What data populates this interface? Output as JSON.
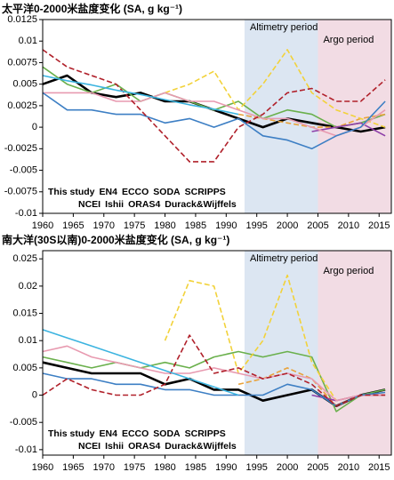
{
  "chart_data": [
    {
      "type": "line",
      "title": "太平洋0-2000米盐度变化 (SA, g kg⁻¹)",
      "x": [
        1960,
        1964,
        1968,
        1972,
        1976,
        1980,
        1984,
        1988,
        1992,
        1996,
        2000,
        2004,
        2008,
        2012,
        2016
      ],
      "xlim": [
        1960,
        2017
      ],
      "xticks": [
        1960,
        1965,
        1970,
        1975,
        1980,
        1985,
        1990,
        1995,
        2000,
        2005,
        2010,
        2015
      ],
      "ylim": [
        -0.01,
        0.0125
      ],
      "yticks": [
        -0.01,
        -0.0075,
        -0.005,
        -0.0025,
        0,
        0.0025,
        0.005,
        0.0075,
        0.01,
        0.0125
      ],
      "periods": [
        {
          "label": "Altimetry period",
          "start": 1993,
          "end": 2017,
          "color": "#dce6f2",
          "label_color": "#3a7cc0"
        },
        {
          "label": "Argo period",
          "start": 2005,
          "end": 2017,
          "color": "#f2dce4",
          "label_color": "#d2485a"
        }
      ],
      "series": [
        {
          "name": "This study",
          "color": "#000000",
          "dash": false,
          "values": [
            0.005,
            0.006,
            0.004,
            0.0035,
            0.004,
            0.003,
            0.003,
            0.002,
            0.001,
            0.0,
            0.001,
            0.0005,
            0.0,
            -0.0005,
            0.0
          ]
        },
        {
          "name": "EN4",
          "color": "#6ab04c",
          "dash": false,
          "values": [
            0.007,
            0.005,
            0.004,
            0.005,
            0.003,
            0.004,
            0.003,
            0.002,
            0.003,
            0.001,
            0.002,
            0.0015,
            0.0,
            0.0005,
            0.0015
          ]
        },
        {
          "name": "ECCO",
          "color": "#e8a33c",
          "dash": true,
          "values": [
            null,
            null,
            null,
            null,
            null,
            null,
            null,
            null,
            0.0015,
            0.001,
            0.0005,
            0.0,
            0.0,
            0.001,
            0.0015
          ]
        },
        {
          "name": "SODA",
          "color": "#f2d23a",
          "dash": true,
          "values": [
            null,
            null,
            null,
            null,
            null,
            0.004,
            0.005,
            0.0065,
            0.002,
            0.005,
            0.009,
            0.004,
            0.002,
            0.001,
            0.0
          ]
        },
        {
          "name": "SCRIPPS",
          "color": "#8e3fa8",
          "dash": false,
          "values": [
            null,
            null,
            null,
            null,
            null,
            null,
            null,
            null,
            null,
            null,
            null,
            -0.0005,
            0.0,
            0.0005,
            -0.001
          ]
        },
        {
          "name": "NCEI",
          "color": "#e89ab0",
          "dash": false,
          "values": [
            0.004,
            0.004,
            0.004,
            0.003,
            0.003,
            0.004,
            0.003,
            0.003,
            0.002,
            0.001,
            0.001,
            0.0,
            -0.001,
            0.0,
            0.002
          ]
        },
        {
          "name": "Ishii",
          "color": "#3d7fc4",
          "dash": false,
          "values": [
            0.004,
            0.002,
            0.002,
            0.0015,
            0.0015,
            0.0005,
            0.001,
            0.0,
            0.001,
            -0.001,
            -0.0015,
            -0.0025,
            -0.001,
            0.0,
            0.003
          ]
        },
        {
          "name": "ORAS4",
          "color": "#b0202a",
          "dash": true,
          "values": [
            0.009,
            0.007,
            0.006,
            0.005,
            0.002,
            -0.001,
            -0.004,
            -0.004,
            0.0,
            0.0015,
            0.004,
            0.0045,
            0.003,
            0.003,
            0.0055
          ]
        },
        {
          "name": "Durack&Wijffels",
          "color": "#3cb4e0",
          "dash": false,
          "values": [
            0.006,
            0.0054,
            0.0049,
            0.0043,
            0.0038,
            0.0032,
            0.0026,
            0.0021,
            0.0015,
            null,
            null,
            null,
            null,
            null,
            null
          ]
        }
      ]
    },
    {
      "type": "line",
      "title": "南大洋(30S以南)0-2000米盐度变化 (SA, g kg⁻¹)",
      "x": [
        1960,
        1964,
        1968,
        1972,
        1976,
        1980,
        1984,
        1988,
        1992,
        1996,
        2000,
        2004,
        2008,
        2012,
        2016
      ],
      "xlim": [
        1960,
        2017
      ],
      "xticks": [
        1960,
        1965,
        1970,
        1975,
        1980,
        1985,
        1990,
        1995,
        2000,
        2005,
        2010,
        2015
      ],
      "ylim": [
        -0.011,
        0.0265
      ],
      "yticks": [
        -0.01,
        -0.005,
        0,
        0.005,
        0.01,
        0.015,
        0.02,
        0.025
      ],
      "periods": [
        {
          "label": "Altimetry period",
          "start": 1993,
          "end": 2017,
          "color": "#dce6f2",
          "label_color": "#3a7cc0"
        },
        {
          "label": "Argo period",
          "start": 2005,
          "end": 2017,
          "color": "#f2dce4",
          "label_color": "#d2485a"
        }
      ],
      "series": [
        {
          "name": "This study",
          "color": "#000000",
          "dash": false,
          "values": [
            0.006,
            0.005,
            0.004,
            0.004,
            0.004,
            0.002,
            0.003,
            0.001,
            0.001,
            -0.001,
            0.0,
            0.001,
            -0.002,
            0.0,
            0.001
          ]
        },
        {
          "name": "EN4",
          "color": "#6ab04c",
          "dash": false,
          "values": [
            0.007,
            0.006,
            0.005,
            0.006,
            0.005,
            0.006,
            0.005,
            0.007,
            0.008,
            0.007,
            0.008,
            0.007,
            -0.003,
            0.0,
            0.001
          ]
        },
        {
          "name": "ECCO",
          "color": "#e8a33c",
          "dash": true,
          "values": [
            null,
            null,
            null,
            null,
            null,
            null,
            null,
            null,
            0.002,
            0.003,
            0.005,
            0.003,
            -0.002,
            0.0,
            0.0
          ]
        },
        {
          "name": "SODA",
          "color": "#f2d23a",
          "dash": true,
          "values": [
            null,
            null,
            null,
            null,
            null,
            0.01,
            0.021,
            0.02,
            0.004,
            0.01,
            0.022,
            0.006,
            -0.001,
            0.0,
            0.0
          ]
        },
        {
          "name": "SCRIPPS",
          "color": "#8e3fa8",
          "dash": false,
          "values": [
            null,
            null,
            null,
            null,
            null,
            null,
            null,
            null,
            null,
            null,
            null,
            0.0,
            -0.001,
            0.0,
            0.0
          ]
        },
        {
          "name": "NCEI",
          "color": "#e89ab0",
          "dash": false,
          "values": [
            0.008,
            0.009,
            0.007,
            0.006,
            0.005,
            0.004,
            0.004,
            0.005,
            0.004,
            0.003,
            0.004,
            0.003,
            -0.001,
            0.0,
            0.0
          ]
        },
        {
          "name": "Ishii",
          "color": "#3d7fc4",
          "dash": false,
          "values": [
            0.004,
            0.003,
            0.003,
            0.002,
            0.002,
            0.001,
            0.001,
            0.0,
            0.0,
            0.0,
            0.002,
            0.001,
            -0.002,
            0.0,
            0.0005
          ]
        },
        {
          "name": "ORAS4",
          "color": "#b0202a",
          "dash": true,
          "values": [
            0.0,
            0.003,
            0.001,
            0.0,
            0.0,
            0.002,
            0.011,
            0.004,
            0.005,
            0.003,
            0.004,
            0.002,
            -0.002,
            0.0,
            0.0
          ]
        },
        {
          "name": "Durack&Wijffels",
          "color": "#3cb4e0",
          "dash": false,
          "values": [
            0.012,
            0.0105,
            0.009,
            0.0075,
            0.006,
            0.0045,
            0.003,
            0.0015,
            0.0,
            null,
            null,
            null,
            null,
            null,
            null
          ]
        }
      ]
    }
  ]
}
